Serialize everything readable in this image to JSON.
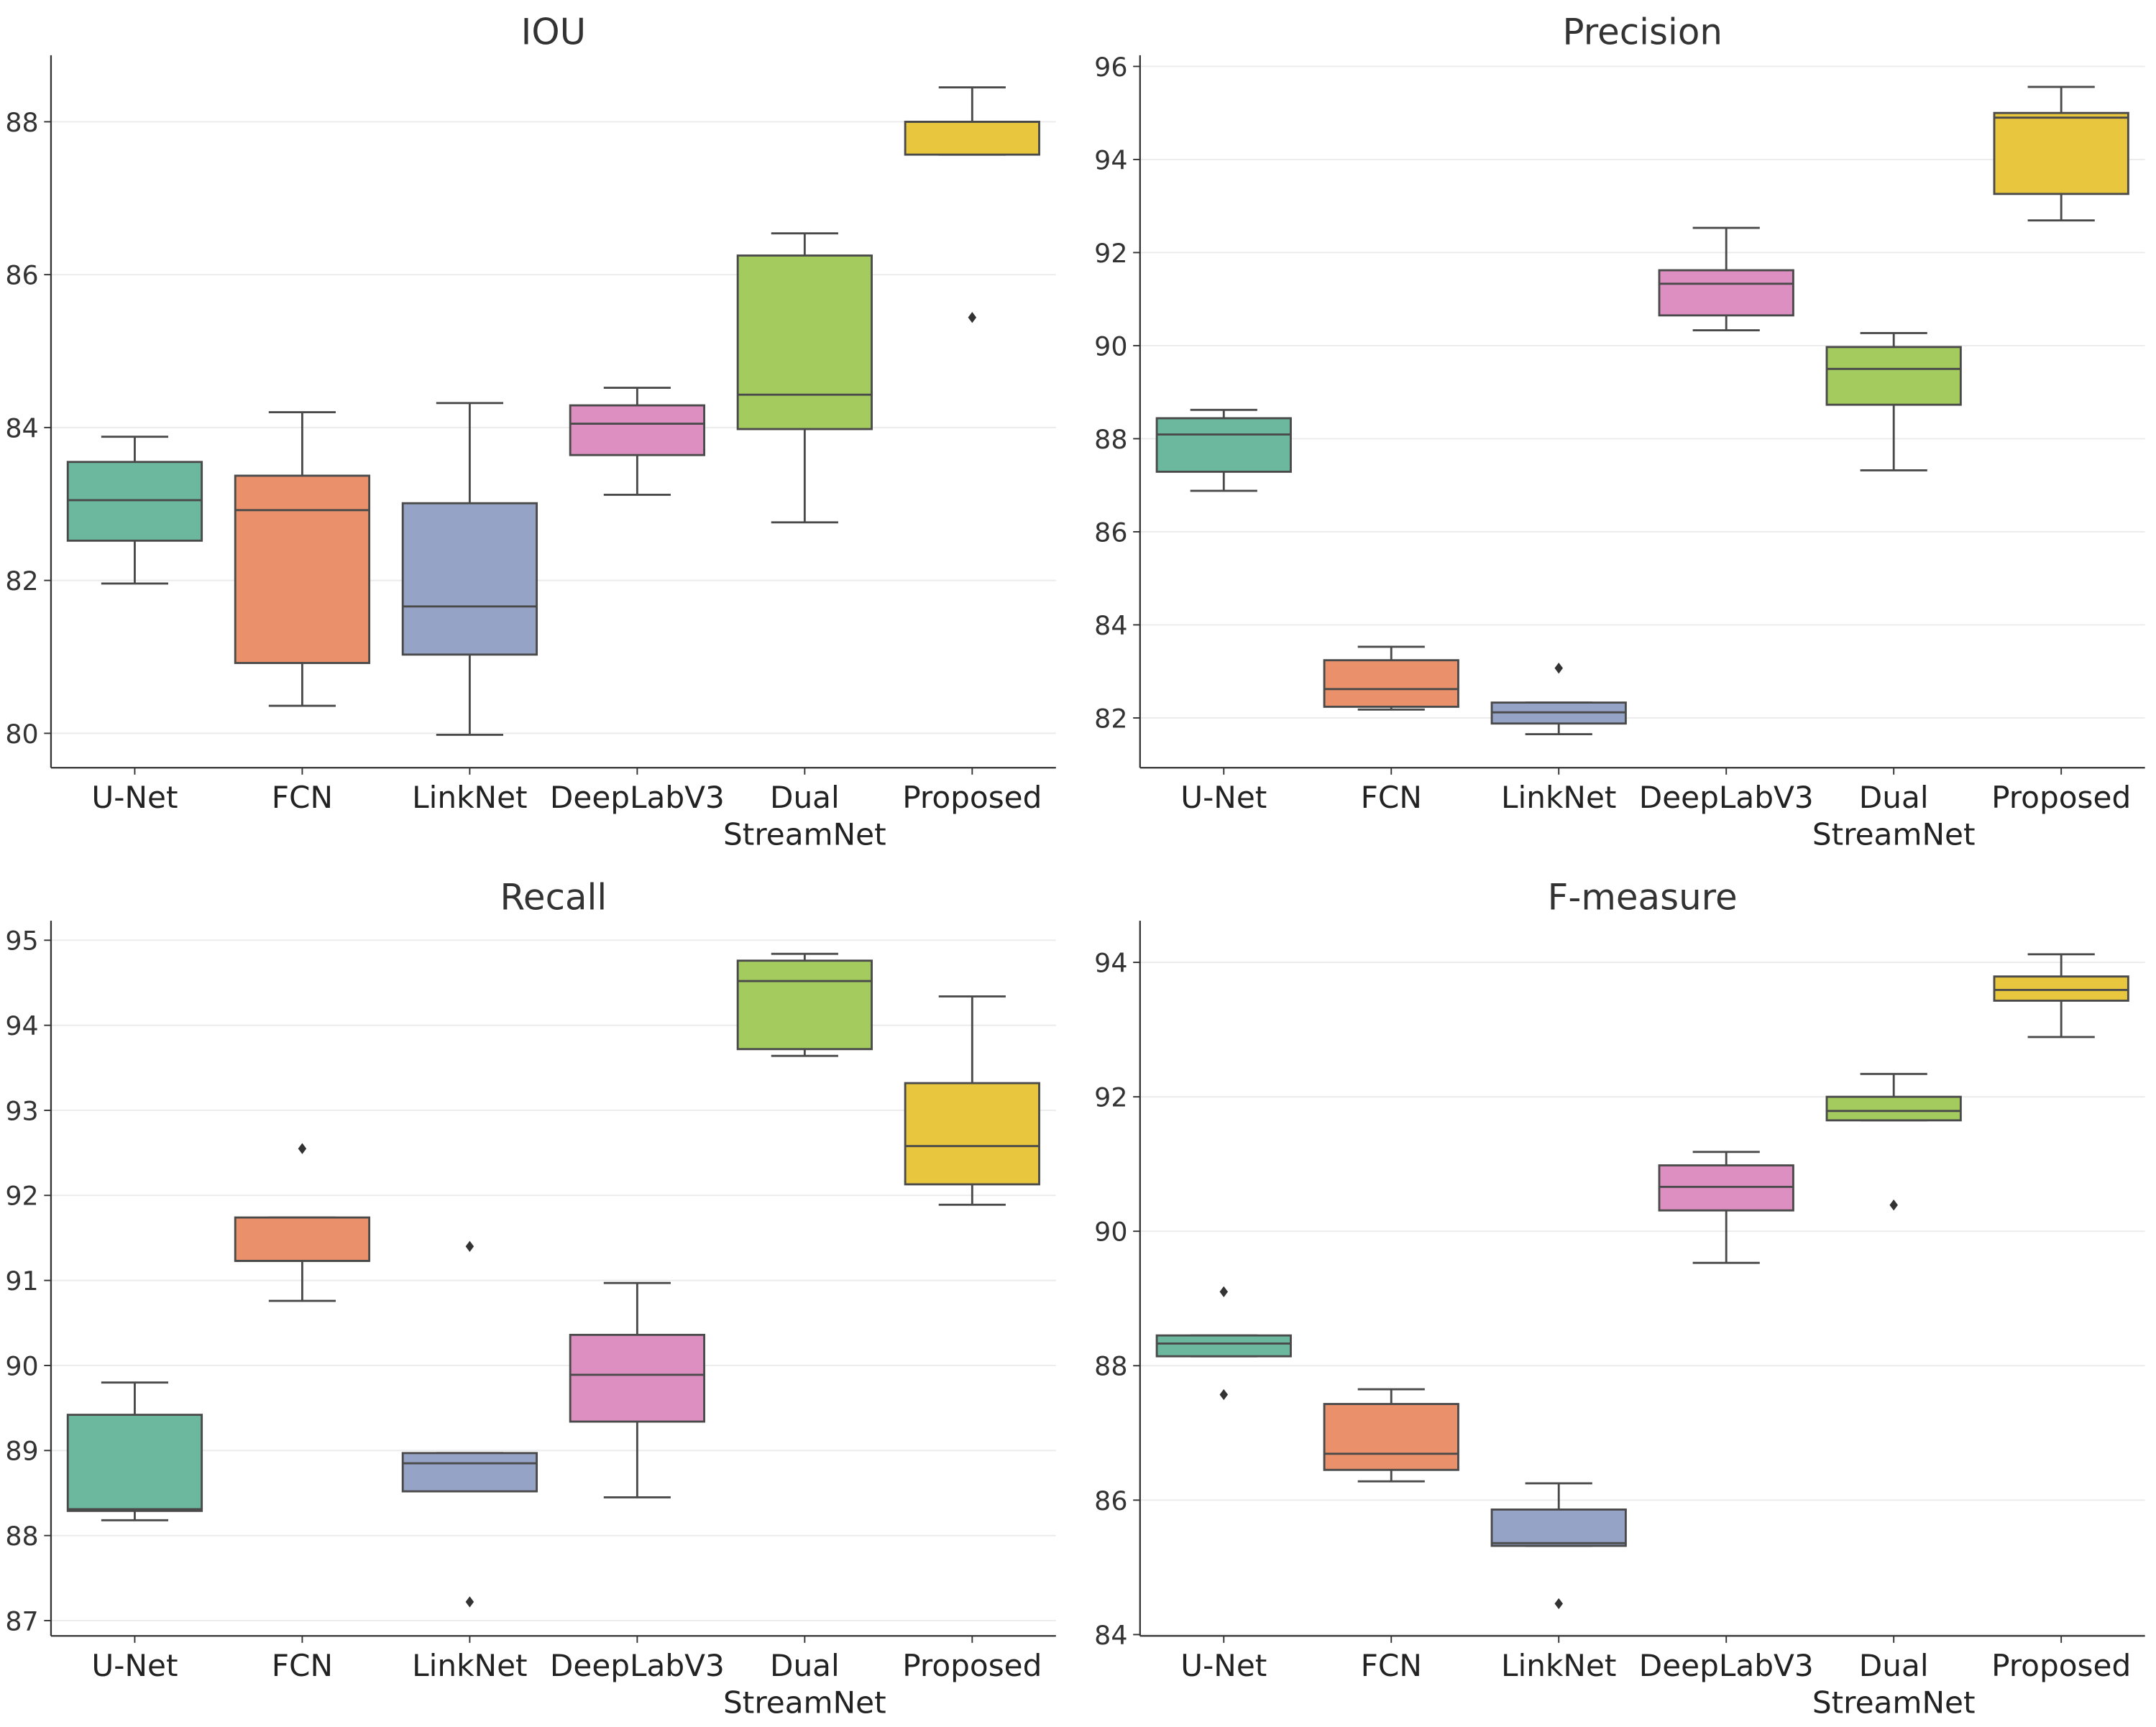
{
  "categories": [
    "U-Net",
    "FCN",
    "LinkNet",
    "DeepLabV3",
    "Dual\nStreamNet",
    "Proposed"
  ],
  "colors": [
    "#6cb89e",
    "#ea916b",
    "#95a3c6",
    "#dd8fc1",
    "#a3cb5e",
    "#e8c63e"
  ],
  "chart_data": [
    {
      "type": "box",
      "title": "IOU",
      "ylim": [
        79.55,
        88.87
      ],
      "yticks": [
        80,
        82,
        84,
        86,
        88
      ],
      "grid": true,
      "boxes": [
        {
          "low": 81.96,
          "q1": 82.52,
          "median": 83.05,
          "q3": 83.55,
          "high": 83.88,
          "outliers": []
        },
        {
          "low": 80.36,
          "q1": 80.92,
          "median": 82.92,
          "q3": 83.37,
          "high": 84.2,
          "outliers": []
        },
        {
          "low": 79.98,
          "q1": 81.03,
          "median": 81.66,
          "q3": 83.01,
          "high": 84.32,
          "outliers": []
        },
        {
          "low": 83.12,
          "q1": 83.64,
          "median": 84.05,
          "q3": 84.29,
          "high": 84.52,
          "outliers": []
        },
        {
          "low": 82.76,
          "q1": 83.98,
          "median": 84.43,
          "q3": 86.25,
          "high": 86.54,
          "outliers": []
        },
        {
          "low": 87.57,
          "q1": 87.57,
          "median": 88.0,
          "q3": 88.0,
          "high": 88.45,
          "outliers": [
            85.44
          ]
        }
      ]
    },
    {
      "type": "box",
      "title": "Precision",
      "ylim": [
        80.93,
        96.24
      ],
      "yticks": [
        82,
        84,
        86,
        88,
        90,
        92,
        94,
        96
      ],
      "grid": true,
      "boxes": [
        {
          "low": 86.88,
          "q1": 87.29,
          "median": 88.09,
          "q3": 88.44,
          "high": 88.62,
          "outliers": []
        },
        {
          "low": 82.18,
          "q1": 82.24,
          "median": 82.62,
          "q3": 83.24,
          "high": 83.53,
          "outliers": []
        },
        {
          "low": 81.65,
          "q1": 81.88,
          "median": 82.12,
          "q3": 82.33,
          "high": 82.33,
          "outliers": [
            83.07
          ]
        },
        {
          "low": 90.33,
          "q1": 90.65,
          "median": 91.33,
          "q3": 91.62,
          "high": 92.53,
          "outliers": []
        },
        {
          "low": 87.32,
          "q1": 88.73,
          "median": 89.5,
          "q3": 89.97,
          "high": 90.27,
          "outliers": []
        },
        {
          "low": 92.69,
          "q1": 93.26,
          "median": 94.9,
          "q3": 95.0,
          "high": 95.56,
          "outliers": []
        }
      ]
    },
    {
      "type": "box",
      "title": "Recall",
      "ylim": [
        86.82,
        95.23
      ],
      "yticks": [
        87,
        88,
        89,
        90,
        91,
        92,
        93,
        94,
        95
      ],
      "grid": true,
      "boxes": [
        {
          "low": 88.18,
          "q1": 88.29,
          "median": 88.31,
          "q3": 89.42,
          "high": 89.8,
          "outliers": []
        },
        {
          "low": 90.76,
          "q1": 91.23,
          "median": 91.23,
          "q3": 91.74,
          "high": 91.74,
          "outliers": [
            92.55
          ]
        },
        {
          "low": 88.52,
          "q1": 88.52,
          "median": 88.85,
          "q3": 88.97,
          "high": 88.97,
          "outliers": [
            91.4,
            87.22
          ]
        },
        {
          "low": 88.45,
          "q1": 89.34,
          "median": 89.89,
          "q3": 90.36,
          "high": 90.97,
          "outliers": []
        },
        {
          "low": 93.64,
          "q1": 93.72,
          "median": 94.52,
          "q3": 94.76,
          "high": 94.84,
          "outliers": []
        },
        {
          "low": 91.89,
          "q1": 92.13,
          "median": 92.58,
          "q3": 93.32,
          "high": 94.34,
          "outliers": []
        }
      ]
    },
    {
      "type": "box",
      "title": "F-measure",
      "ylim": [
        83.98,
        94.62
      ],
      "yticks": [
        84,
        86,
        88,
        90,
        92,
        94
      ],
      "grid": true,
      "boxes": [
        {
          "low": 88.14,
          "q1": 88.14,
          "median": 88.33,
          "q3": 88.45,
          "high": 88.45,
          "outliers": [
            89.1,
            87.57
          ]
        },
        {
          "low": 86.28,
          "q1": 86.45,
          "median": 86.69,
          "q3": 87.43,
          "high": 87.65,
          "outliers": []
        },
        {
          "low": 85.32,
          "q1": 85.32,
          "median": 85.36,
          "q3": 85.86,
          "high": 86.25,
          "outliers": [
            84.46
          ]
        },
        {
          "low": 89.53,
          "q1": 90.31,
          "median": 90.66,
          "q3": 90.98,
          "high": 91.18,
          "outliers": []
        },
        {
          "low": 91.65,
          "q1": 91.65,
          "median": 91.79,
          "q3": 92.0,
          "high": 92.34,
          "outliers": [
            90.39
          ]
        },
        {
          "low": 92.89,
          "q1": 93.43,
          "median": 93.59,
          "q3": 93.79,
          "high": 94.12,
          "outliers": []
        }
      ]
    }
  ]
}
